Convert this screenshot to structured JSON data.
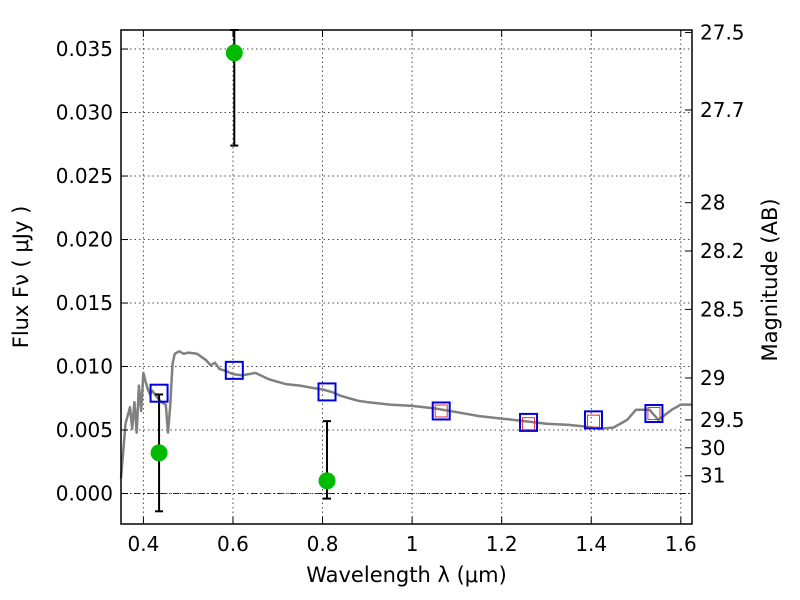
{
  "chart_data": {
    "type": "scatter",
    "xlabel": "Wavelength  λ (μm)",
    "ylabel": "Flux  Fν  ( μJy )",
    "y2label": "Magnitude (AB)",
    "xlim": [
      0.35,
      1.625
    ],
    "ylim": [
      -0.0024,
      0.0365
    ],
    "x_ticks": [
      0.4,
      0.6,
      0.8,
      1.0,
      1.2,
      1.4,
      1.6
    ],
    "x_tick_labels": [
      "0.4",
      "0.6",
      "0.8",
      "1",
      "1.2",
      "1.4",
      "1.6"
    ],
    "y_ticks": [
      0.0,
      0.005,
      0.01,
      0.015,
      0.02,
      0.025,
      0.03,
      0.035
    ],
    "y_tick_labels": [
      "0.000",
      "0.005",
      "0.010",
      "0.015",
      "0.020",
      "0.025",
      "0.030",
      "0.035"
    ],
    "y2_ticks": [
      {
        "label": "27.5",
        "flux": 0.0363
      },
      {
        "label": "27.7",
        "flux": 0.0302
      },
      {
        "label": "28",
        "flux": 0.0229
      },
      {
        "label": "28.2",
        "flux": 0.0191
      },
      {
        "label": "28.5",
        "flux": 0.0145
      },
      {
        "label": "29",
        "flux": 0.0091
      },
      {
        "label": "29.5",
        "flux": 0.0058
      },
      {
        "label": "30",
        "flux": 0.0036
      },
      {
        "label": "31",
        "flux": 0.0014
      }
    ],
    "grid": true,
    "zero_line": true,
    "colors": {
      "model": "#808080",
      "detection": "#00bb00",
      "blue_box": "#0000dd",
      "red_box": "#dd3333",
      "errorbar": "#000000"
    },
    "series": [
      {
        "kind": "line",
        "x": [
          0.35,
          0.36,
          0.37,
          0.375,
          0.38,
          0.385,
          0.39,
          0.395,
          0.4,
          0.405,
          0.41,
          0.415,
          0.42,
          0.43,
          0.44,
          0.45,
          0.455,
          0.46,
          0.465,
          0.47,
          0.48,
          0.49,
          0.5,
          0.52,
          0.54,
          0.55,
          0.56,
          0.57,
          0.58,
          0.6,
          0.62,
          0.65,
          0.68,
          0.7,
          0.72,
          0.75,
          0.78,
          0.8,
          0.82,
          0.84,
          0.86,
          0.88,
          0.9,
          0.95,
          1.0,
          1.05,
          1.1,
          1.15,
          1.2,
          1.25,
          1.3,
          1.35,
          1.38,
          1.4,
          1.42,
          1.45,
          1.48,
          1.5,
          1.53,
          1.55,
          1.58,
          1.6,
          1.625
        ],
        "y": [
          0.0012,
          0.0055,
          0.0068,
          0.0051,
          0.0072,
          0.0048,
          0.0085,
          0.0065,
          0.0095,
          0.0088,
          0.0082,
          0.0078,
          0.0081,
          0.0076,
          0.0072,
          0.007,
          0.0048,
          0.007,
          0.0102,
          0.011,
          0.0112,
          0.011,
          0.0111,
          0.011,
          0.0105,
          0.0101,
          0.0103,
          0.0098,
          0.0097,
          0.0094,
          0.0093,
          0.0095,
          0.009,
          0.0088,
          0.0086,
          0.0085,
          0.0083,
          0.0082,
          0.008,
          0.0077,
          0.0075,
          0.0073,
          0.0072,
          0.007,
          0.0069,
          0.0067,
          0.0064,
          0.0061,
          0.0059,
          0.0057,
          0.0055,
          0.0054,
          0.0053,
          0.0052,
          0.0051,
          0.0052,
          0.0058,
          0.0066,
          0.0066,
          0.0058,
          0.0066,
          0.007,
          0.007
        ]
      },
      {
        "kind": "detection",
        "x": [
          0.435,
          0.603,
          0.81
        ],
        "y": [
          0.0032,
          0.0347,
          0.001
        ],
        "err_low": [
          -0.0014,
          0.0274,
          -0.0004
        ],
        "err_high": [
          0.0078,
          0.0365,
          0.0057
        ]
      },
      {
        "kind": "blue_box",
        "x": [
          0.435,
          0.603,
          0.81,
          1.065,
          1.26,
          1.405,
          1.54
        ],
        "y": [
          0.0079,
          0.0097,
          0.008,
          0.0065,
          0.0056,
          0.0058,
          0.0063
        ]
      },
      {
        "kind": "red_box",
        "x": [
          1.065,
          1.26,
          1.405,
          1.54
        ],
        "y": [
          0.0065,
          0.0055,
          0.0057,
          0.0063
        ]
      }
    ]
  }
}
